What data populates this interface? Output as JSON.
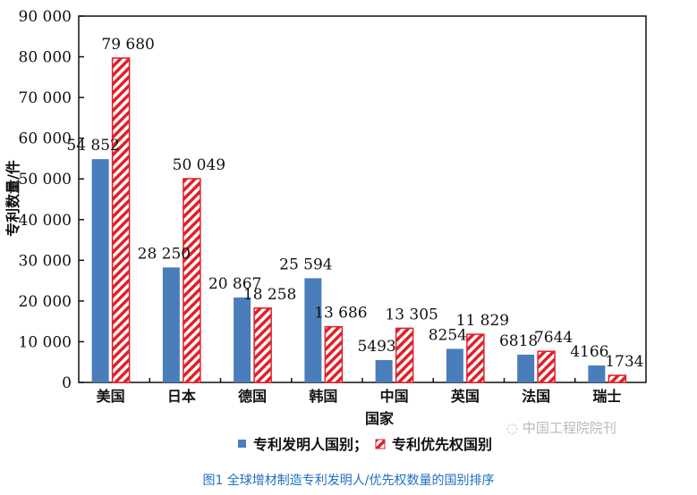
{
  "chart_data": {
    "type": "bar",
    "title": "",
    "xlabel": "国家",
    "ylabel": "专利数量/件",
    "ylim": [
      0,
      90000
    ],
    "yticks": [
      0,
      10000,
      20000,
      30000,
      40000,
      50000,
      60000,
      70000,
      80000,
      90000
    ],
    "ytick_labels": [
      "0",
      "10 000",
      "20 000",
      "30 000",
      "40 000",
      "50 000",
      "60 000",
      "70 000",
      "80 000",
      "90 000"
    ],
    "categories": [
      "美国",
      "日本",
      "德国",
      "韩国",
      "中国",
      "英国",
      "法国",
      "瑞士"
    ],
    "series": [
      {
        "name": "专利发明人国别；",
        "color": "#4a7ebb",
        "pattern": "solid",
        "values": [
          54852,
          28250,
          20867,
          25594,
          5493,
          8254,
          6818,
          4166
        ],
        "labels": [
          "54 852",
          "28 250",
          "20 867",
          "25 594",
          "5493",
          "8254",
          "6818",
          "4166"
        ]
      },
      {
        "name": "专利优先权国别",
        "color": "#e0202a",
        "pattern": "hatched",
        "values": [
          79680,
          50049,
          18258,
          13686,
          13305,
          11829,
          7644,
          1734
        ],
        "labels": [
          "79 680",
          "50 049",
          "18 258",
          "13 686",
          "13 305",
          "11 829",
          "7644",
          "1734"
        ]
      }
    ],
    "legend_position": "bottom",
    "grid": false
  },
  "caption": "图1 全球增材制造专利发明人/优先权数量的国别排序",
  "watermark": "中国工程院院刊"
}
